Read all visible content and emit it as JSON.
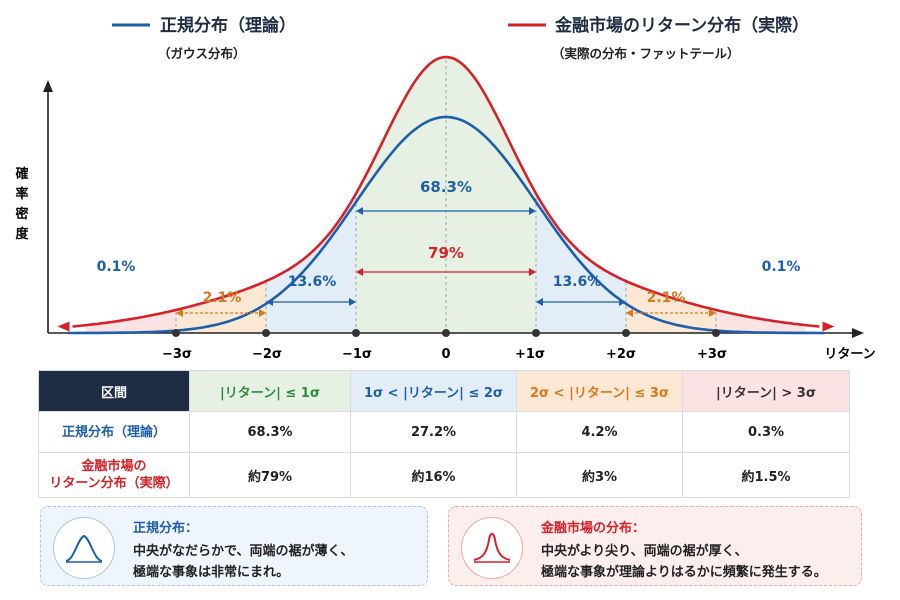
{
  "legend": {
    "normal_title": "正規分布（理論）",
    "normal_sub": "（ガウス分布）",
    "market_title": "金融市場のリターン分布（実際）",
    "market_sub": "（実際の分布・ファットテール）"
  },
  "axes": {
    "ylabel": [
      "確",
      "率",
      "密",
      "度"
    ],
    "xlabel": "リターン",
    "ticks": [
      "−3σ",
      "−2σ",
      "−1σ",
      "0",
      "+1σ",
      "+2σ",
      "+3σ"
    ]
  },
  "annotations": {
    "center_normal": "68.3%",
    "center_market": "79%",
    "band2_left": "13.6%",
    "band2_right": "13.6%",
    "band3_left": "2.1%",
    "band3_right": "2.1%",
    "tail_left": "0.1%",
    "tail_right": "0.1%"
  },
  "colors": {
    "normal": "#1d5fa8",
    "market": "#d62128",
    "band1": "#e6f1e3",
    "band2": "#e3edf8",
    "band3": "#fbe8d4",
    "tail": "#fbe3e3",
    "orange": "#d9771a"
  },
  "table": {
    "header": [
      "区間",
      "|リターン| ≤ 1σ",
      "1σ < |リターン| ≤ 2σ",
      "2σ < |リターン| ≤ 3σ",
      "|リターン| > 3σ"
    ],
    "row1_label": "正規分布（理論）",
    "row1": [
      "68.3%",
      "27.2%",
      "4.2%",
      "0.3%"
    ],
    "row2_label_1": "金融市場の",
    "row2_label_2": "リターン分布（実際）",
    "row2": [
      "約79%",
      "約16%",
      "約3%",
      "約1.5%"
    ]
  },
  "notes": {
    "normal": {
      "icon": "bell-curve-icon",
      "title": "正規分布：",
      "line1": "中央がなだらかで、両端の裾が薄く、",
      "line2": "極端な事象は非常にまれ。"
    },
    "market": {
      "icon": "peaked-curve-icon",
      "title": "金融市場の分布：",
      "line1": "中央がより尖り、両端の裾が厚く、",
      "line2": "極端な事象が理論よりはるかに頻繁に発生する。"
    }
  }
}
